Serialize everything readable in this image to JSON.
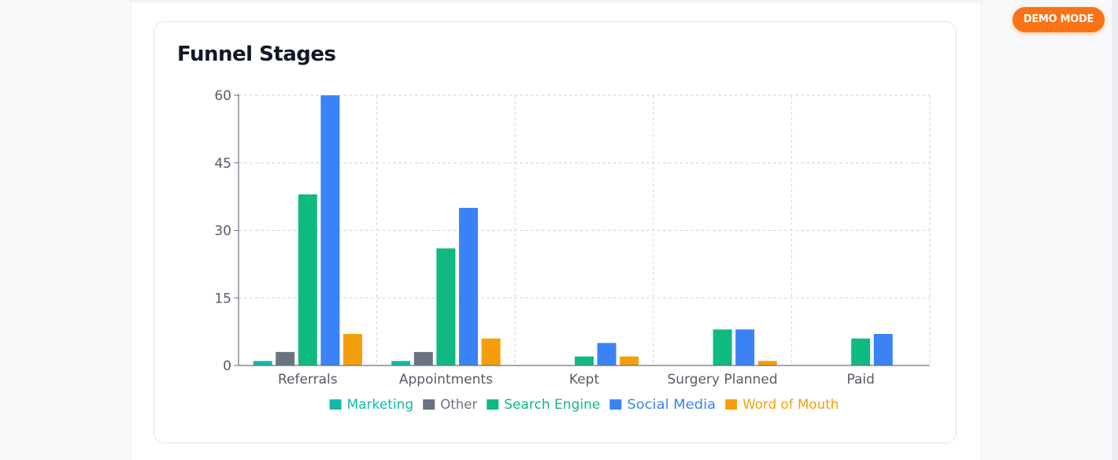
{
  "badge": {
    "label": "DEMO MODE",
    "color": "#f97316"
  },
  "card": {
    "title": "Funnel Stages"
  },
  "chart_data": {
    "type": "bar",
    "title": "Funnel Stages",
    "xlabel": "",
    "ylabel": "",
    "ylim": [
      0,
      60
    ],
    "yticks": [
      0,
      15,
      30,
      45,
      60
    ],
    "grid": true,
    "legend_position": "bottom",
    "categories": [
      "Referrals",
      "Appointments",
      "Kept",
      "Surgery Planned",
      "Paid"
    ],
    "series": [
      {
        "name": "Marketing",
        "color": "#14b8a6",
        "values": [
          1,
          1,
          0,
          0,
          0
        ]
      },
      {
        "name": "Other",
        "color": "#6b7280",
        "values": [
          3,
          3,
          0,
          0,
          0
        ]
      },
      {
        "name": "Search Engine",
        "color": "#10b981",
        "values": [
          38,
          26,
          2,
          8,
          6
        ]
      },
      {
        "name": "Social Media",
        "color": "#3b82f6",
        "values": [
          60,
          35,
          5,
          8,
          7
        ]
      },
      {
        "name": "Word of Mouth",
        "color": "#f59e0b",
        "values": [
          7,
          6,
          2,
          1,
          0
        ]
      }
    ]
  }
}
